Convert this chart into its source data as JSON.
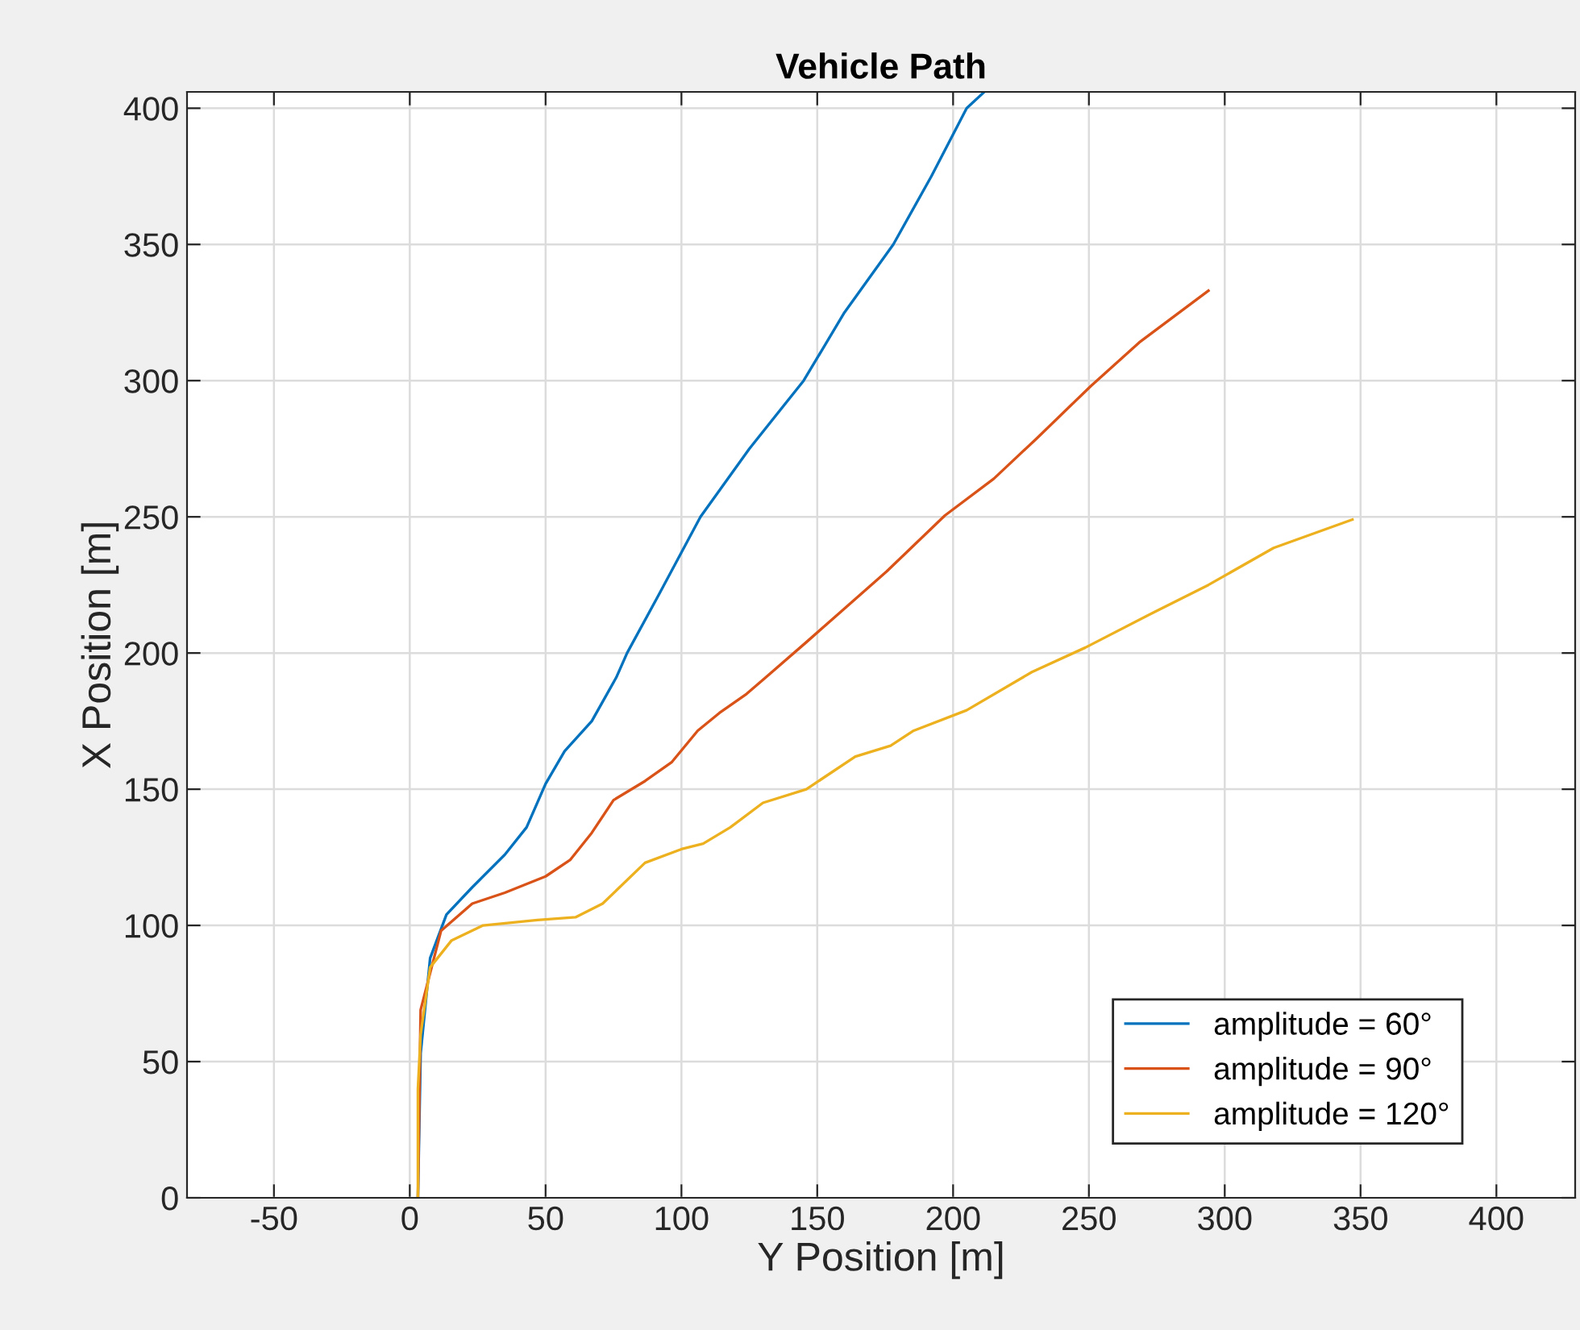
{
  "chart_data": {
    "type": "line",
    "title": "Vehicle Path",
    "xlabel": "Y Position [m]",
    "ylabel": "X Position [m]",
    "xlim": [
      -82,
      429
    ],
    "ylim": [
      0,
      406
    ],
    "xticks": [
      -50,
      0,
      50,
      100,
      150,
      200,
      250,
      300,
      350,
      400
    ],
    "yticks": [
      0,
      50,
      100,
      150,
      200,
      250,
      300,
      350,
      400
    ],
    "grid": true,
    "legend": "bottom right",
    "line_style": "solid",
    "marker": "none",
    "series": [
      {
        "name": "amplitude = 60°",
        "color": "#0072bd",
        "x": [
          3,
          4,
          7.5,
          13.5,
          23,
          35,
          43,
          50,
          57,
          67,
          76,
          80,
          92,
          107,
          125,
          145,
          160,
          178,
          192,
          205,
          211.5
        ],
        "values": [
          0,
          53,
          88,
          104,
          114,
          126,
          136,
          152,
          164,
          175,
          191,
          200,
          222,
          250,
          275,
          300,
          325,
          350,
          375,
          400,
          406
        ]
      },
      {
        "name": "amplitude = 90°",
        "color": "#d95319",
        "x": [
          3,
          4,
          11.5,
          23,
          35,
          50,
          59,
          67,
          75,
          86.6,
          96.5,
          106,
          114,
          124,
          131,
          146,
          175.6,
          197,
          215,
          231,
          250.7,
          268.5,
          294
        ],
        "values": [
          0,
          69,
          98,
          108,
          112,
          118,
          124,
          134,
          146,
          153,
          160,
          171.5,
          178,
          185,
          191,
          204,
          230,
          250.5,
          264,
          279,
          298,
          314,
          333
        ]
      },
      {
        "name": "amplitude = 120°",
        "color": "#edb120",
        "x": [
          3,
          3,
          4,
          7.5,
          15.4,
          27,
          47,
          61,
          71,
          86.6,
          100,
          108,
          118,
          130,
          146,
          164,
          177,
          185.5,
          205,
          229,
          248.7,
          274,
          294,
          318,
          347
        ],
        "values": [
          0,
          40,
          60,
          84.6,
          94.5,
          100,
          102,
          103,
          108,
          123,
          128,
          130,
          136,
          145,
          150,
          162,
          166,
          171.5,
          179,
          193,
          202,
          215,
          225,
          238.6,
          249
        ]
      }
    ]
  }
}
